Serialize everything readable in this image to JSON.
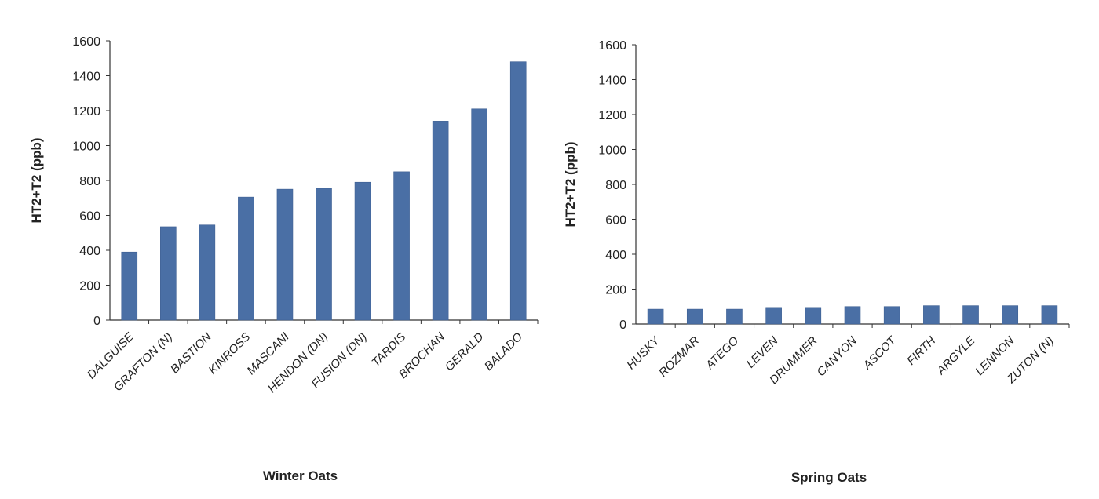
{
  "colors": {
    "bar": "#4a6fa5",
    "bar_edge": "#3d5f92",
    "axis": "#333333",
    "text": "#222222"
  },
  "chart_data": [
    {
      "type": "bar",
      "xlabel": "Winter Oats",
      "ylabel": "HT2+T2 (ppb)",
      "ylim": [
        0,
        1600
      ],
      "yticks": [
        0,
        200,
        400,
        600,
        800,
        1000,
        1200,
        1400,
        1600
      ],
      "grid": false,
      "categories": [
        "DALGUISE",
        "GRAFTON (N)",
        "BASTION",
        "KINROSS",
        "MASCANI",
        "HENDON (DN)",
        "FUSION (DN)",
        "TARDIS",
        "BROCHAN",
        "GERALD",
        "BALADO"
      ],
      "values": [
        390,
        535,
        545,
        705,
        750,
        755,
        790,
        850,
        1140,
        1210,
        1480
      ]
    },
    {
      "type": "bar",
      "xlabel": "Spring Oats",
      "ylabel": "HT2+T2 (ppb)",
      "ylim": [
        0,
        1600
      ],
      "yticks": [
        0,
        200,
        400,
        600,
        800,
        1000,
        1200,
        1400,
        1600
      ],
      "grid": false,
      "categories": [
        "HUSKY",
        "ROZMAR",
        "ATEGO",
        "LEVEN",
        "DRUMMER",
        "CANYON",
        "ASCOT",
        "FIRTH",
        "ARGYLE",
        "LENNON",
        "ZUTON (N)"
      ],
      "values": [
        85,
        85,
        85,
        95,
        95,
        100,
        100,
        105,
        105,
        105,
        105
      ]
    }
  ]
}
